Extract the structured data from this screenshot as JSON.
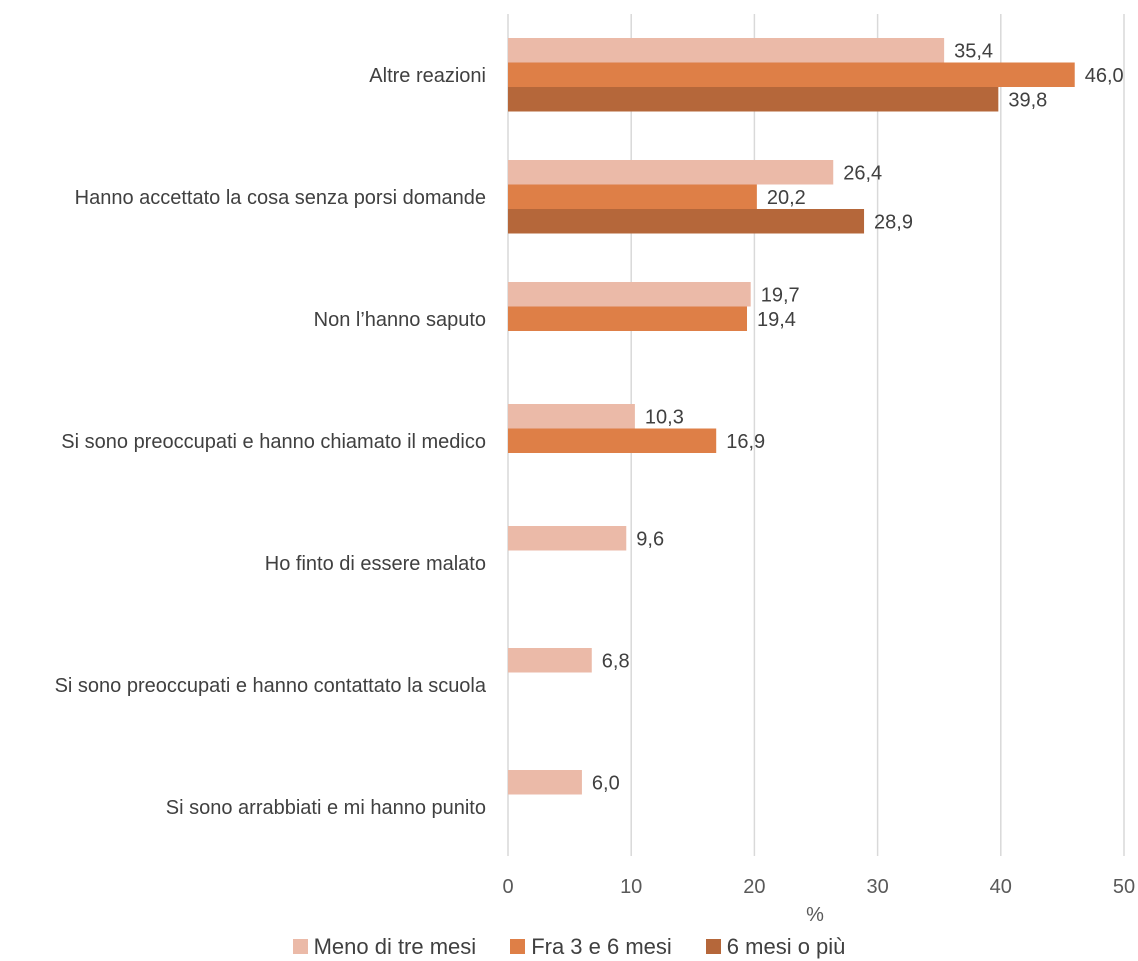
{
  "chart_data": {
    "type": "bar",
    "orientation": "horizontal",
    "title": "",
    "xlabel": "%",
    "ylabel": "",
    "xlim": [
      0,
      50
    ],
    "x_ticks": [
      "0",
      "10",
      "20",
      "30",
      "40",
      "50"
    ],
    "grid": "vertical",
    "legend_position": "bottom",
    "categories": [
      "Altre reazioni",
      "Hanno accettato la cosa senza porsi domande",
      "Non l’hanno saputo",
      "Si sono preoccupati e hanno chiamato il medico",
      "Ho finto di essere malato",
      "Si sono preoccupati e hanno contattato la scuola",
      "Si sono arrabbiati e mi hanno punito"
    ],
    "series": [
      {
        "name": "Meno di tre mesi",
        "color": "#EBBAA8",
        "values": [
          35.4,
          26.4,
          19.7,
          10.3,
          9.6,
          6.8,
          6.0
        ],
        "labels": [
          "35,4",
          "26,4",
          "19,7",
          "10,3",
          "9,6",
          "6,8",
          "6,0"
        ]
      },
      {
        "name": "Fra 3 e 6 mesi",
        "color": "#DE7F47",
        "values": [
          46.0,
          20.2,
          19.4,
          16.9,
          null,
          null,
          null
        ],
        "labels": [
          "46,0",
          "20,2",
          "19,4",
          "16,9",
          null,
          null,
          null
        ]
      },
      {
        "name": "6 mesi o più",
        "color": "#B5673A",
        "values": [
          39.8,
          28.9,
          null,
          null,
          null,
          null,
          null
        ],
        "labels": [
          "39,8",
          "28,9",
          null,
          null,
          null,
          null,
          null
        ]
      }
    ]
  }
}
